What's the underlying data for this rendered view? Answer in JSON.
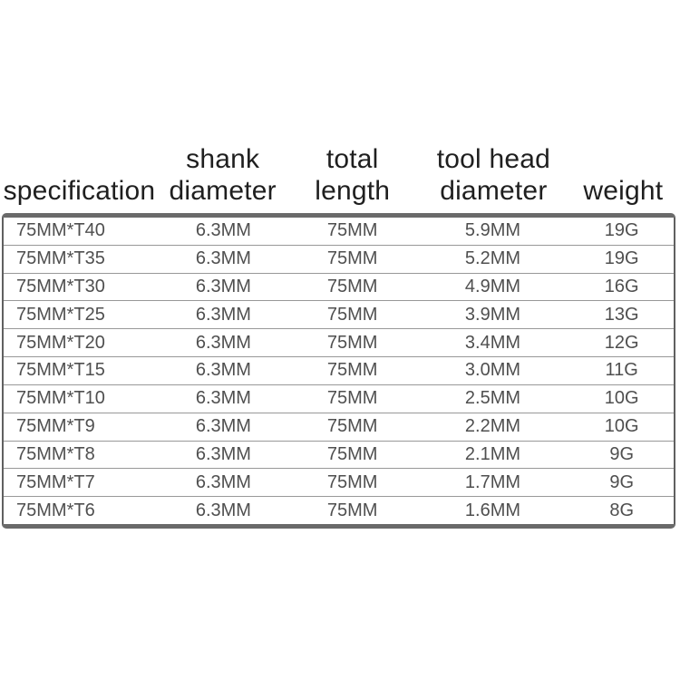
{
  "page": {
    "background_color": "#ffffff",
    "type": "product-specification-sheet"
  },
  "colors": {
    "header_text": "#1f1f1f",
    "body_text": "#4f4f4f",
    "outer_border": "#6a6a6a",
    "row_separator": "#989898",
    "background": "#ffffff"
  },
  "table": {
    "headers": [
      {
        "label": "specification"
      },
      {
        "label": "shank\ndiameter"
      },
      {
        "label": "total\nlength"
      },
      {
        "label": "tool head\ndiameter"
      },
      {
        "label": "weight"
      }
    ],
    "rows": [
      [
        "75MM*T40",
        "6.3MM",
        "75MM",
        "5.9MM",
        "19G"
      ],
      [
        "75MM*T35",
        "6.3MM",
        "75MM",
        "5.2MM",
        "19G"
      ],
      [
        "75MM*T30",
        "6.3MM",
        "75MM",
        "4.9MM",
        "16G"
      ],
      [
        "75MM*T25",
        "6.3MM",
        "75MM",
        "3.9MM",
        "13G"
      ],
      [
        "75MM*T20",
        "6.3MM",
        "75MM",
        "3.4MM",
        "12G"
      ],
      [
        "75MM*T15",
        "6.3MM",
        "75MM",
        "3.0MM",
        "11G"
      ],
      [
        "75MM*T10",
        "6.3MM",
        "75MM",
        "2.5MM",
        "10G"
      ],
      [
        "75MM*T9",
        "6.3MM",
        "75MM",
        "2.2MM",
        "10G"
      ],
      [
        "75MM*T8",
        "6.3MM",
        "75MM",
        "2.1MM",
        "9G"
      ],
      [
        "75MM*T7",
        "6.3MM",
        "75MM",
        "1.7MM",
        "9G"
      ],
      [
        "75MM*T6",
        "6.3MM",
        "75MM",
        "1.6MM",
        "8G"
      ]
    ]
  }
}
